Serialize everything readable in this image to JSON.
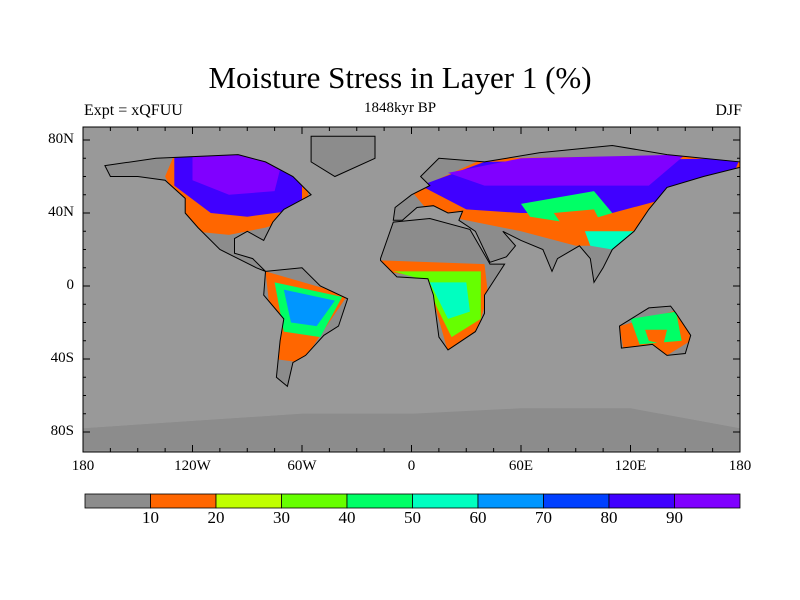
{
  "title": "Moisture Stress in Layer 1 (%)",
  "experiment": "Expt = xQFUU",
  "period": "1848kyr BP",
  "season": "DJF",
  "map": {
    "projection": "cylindrical-equidistant",
    "lon_range": [
      -180,
      180
    ],
    "lat_ticks": [
      {
        "value": 80,
        "label": "80N"
      },
      {
        "value": 40,
        "label": "40N"
      },
      {
        "value": 0,
        "label": "0"
      },
      {
        "value": -40,
        "label": "40S"
      },
      {
        "value": -80,
        "label": "80S"
      }
    ],
    "lon_ticks": [
      {
        "value": -180,
        "label": "180"
      },
      {
        "value": -120,
        "label": "120W"
      },
      {
        "value": -60,
        "label": "60W"
      },
      {
        "value": 0,
        "label": "0"
      },
      {
        "value": 60,
        "label": "60E"
      },
      {
        "value": 120,
        "label": "120E"
      },
      {
        "value": 180,
        "label": "180"
      }
    ],
    "ocean_color": "#999999",
    "missing_color": "#8c8c8c"
  },
  "colorbar": {
    "levels": [
      "10",
      "20",
      "30",
      "40",
      "50",
      "60",
      "70",
      "80",
      "90"
    ],
    "colors": [
      "#8c8c8c",
      "#ff6600",
      "#c0ff00",
      "#66ff00",
      "#00ff66",
      "#00ffc0",
      "#0096ff",
      "#0040ff",
      "#4000ff",
      "#8000ff"
    ]
  }
}
